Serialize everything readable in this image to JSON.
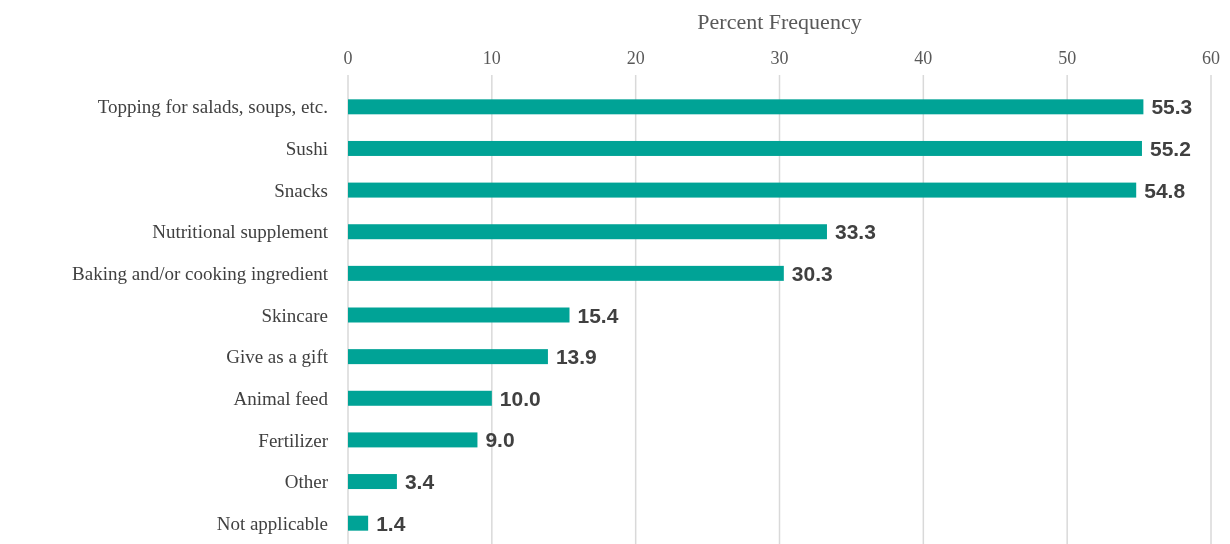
{
  "chart_data": {
    "type": "bar",
    "orientation": "horizontal",
    "xlabel": "Percent Frequency",
    "categories": [
      "Topping for salads, soups, etc.",
      "Sushi",
      "Snacks",
      "Nutritional supplement",
      "Baking and/or cooking ingredient",
      "Skincare",
      "Give as a gift",
      "Animal feed",
      "Fertilizer",
      "Other",
      "Not applicable"
    ],
    "values": [
      55.3,
      55.2,
      54.8,
      33.3,
      30.3,
      15.4,
      13.9,
      10.0,
      9.0,
      3.4,
      1.4
    ],
    "value_labels": [
      "55.3",
      "55.2",
      "54.8",
      "33.3",
      "30.3",
      "15.4",
      "13.9",
      "10.0",
      "9.0",
      "3.4",
      "1.4"
    ],
    "color": "#00a396",
    "xlim": [
      0,
      60
    ],
    "xticks": [
      0,
      10,
      20,
      30,
      40,
      50,
      60
    ],
    "grid": "x"
  }
}
